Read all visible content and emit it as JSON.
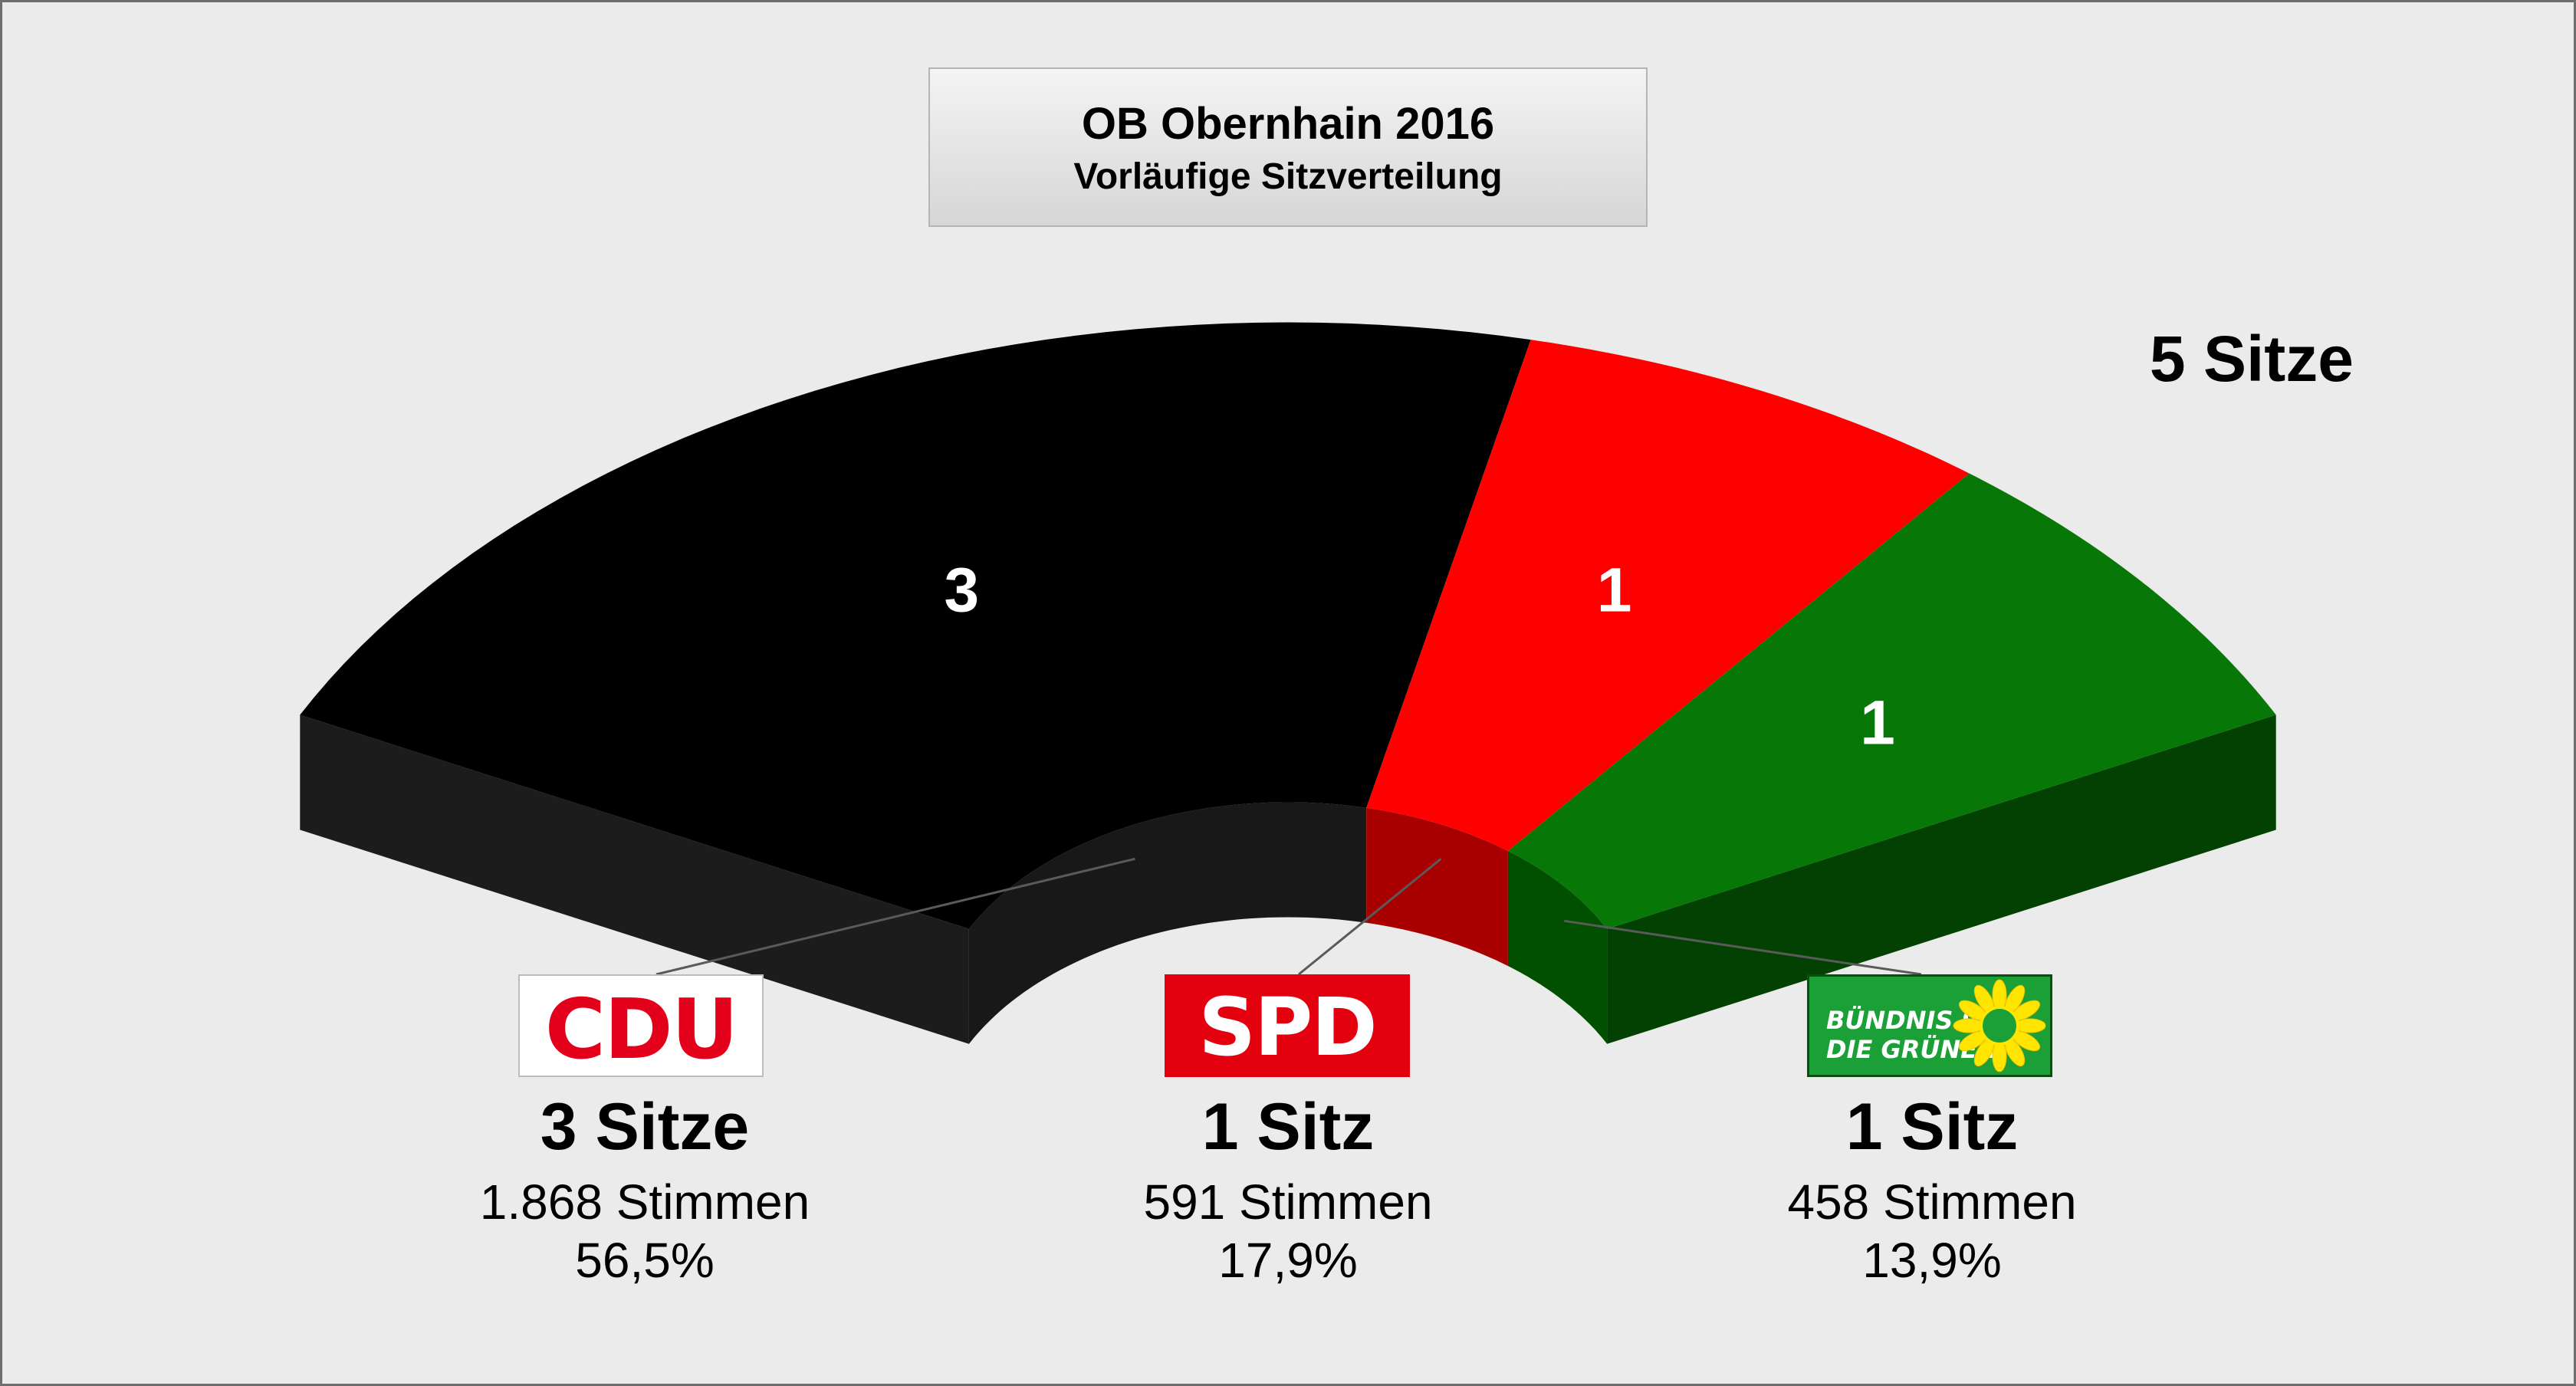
{
  "header": {
    "title": "OB Obernhain 2016",
    "subtitle": "Vorläufige Sitzverteilung"
  },
  "total_label": "5 Sitze",
  "parties": [
    {
      "logo_text": "CDU",
      "seats_label": "3 Sitze",
      "votes_label": "1.868 Stimmen",
      "percent_label": "56,5%",
      "logo_icon": "cdu-logo"
    },
    {
      "logo_text": "SPD",
      "seats_label": "1 Sitz",
      "votes_label": "591 Stimmen",
      "percent_label": "17,9%",
      "logo_icon": "spd-logo"
    },
    {
      "logo_text": "BÜNDNIS 90 DIE GRÜNEN",
      "logo_line1": "BÜNDNIS 90",
      "logo_line2": "DIE GRÜNEN",
      "seats_label": "1 Sitz",
      "votes_label": "458 Stimmen",
      "percent_label": "13,9%",
      "logo_icon": "sunflower-logo"
    }
  ],
  "chart_data": {
    "type": "pie",
    "variant": "parliament-arc",
    "title": "OB Obernhain 2016",
    "subtitle": "Vorläufige Sitzverteilung",
    "total_seats": 5,
    "categories": [
      "CDU",
      "SPD",
      "BÜNDNIS 90 DIE GRÜNEN"
    ],
    "values": [
      3,
      1,
      1
    ],
    "votes": [
      1868,
      591,
      458
    ],
    "percentages": [
      56.5,
      17.9,
      13.9
    ],
    "colors": [
      "#000000",
      "#ff0000",
      "#077807"
    ],
    "side_colors": [
      "#1c1c1c",
      "#b00000",
      "#024102"
    ],
    "inner_colors": [
      "#181818",
      "#a80000",
      "#005000"
    ],
    "legend": "below"
  }
}
